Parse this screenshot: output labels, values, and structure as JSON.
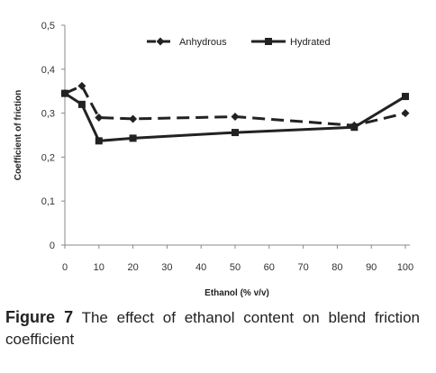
{
  "chart_data": {
    "type": "line",
    "title": "",
    "xlabel": "Ethanol (% v/v)",
    "ylabel": "Coefficient of friction",
    "xlim": [
      0,
      100
    ],
    "ylim": [
      0,
      0.5
    ],
    "x_ticks": [
      "0",
      "10",
      "20",
      "30",
      "40",
      "50",
      "60",
      "70",
      "80",
      "90",
      "100"
    ],
    "y_ticks": [
      "0",
      "0,1",
      "0,2",
      "0,3",
      "0,4",
      "0,5"
    ],
    "grid": false,
    "legend_position": "top-right",
    "series": [
      {
        "name": "Anhydrous",
        "style": "dashed",
        "marker": "diamond",
        "color": "#222222",
        "x": [
          0,
          5,
          10,
          20,
          50,
          85,
          100
        ],
        "y": [
          0.345,
          0.362,
          0.29,
          0.287,
          0.292,
          0.272,
          0.3
        ]
      },
      {
        "name": "Hydrated",
        "style": "solid",
        "marker": "square",
        "color": "#222222",
        "x": [
          0,
          5,
          10,
          20,
          50,
          85,
          100
        ],
        "y": [
          0.345,
          0.32,
          0.237,
          0.243,
          0.256,
          0.268,
          0.338
        ]
      }
    ]
  },
  "caption": {
    "label": "Figure 7",
    "text": " The effect of ethanol content on blend friction coefficient"
  }
}
